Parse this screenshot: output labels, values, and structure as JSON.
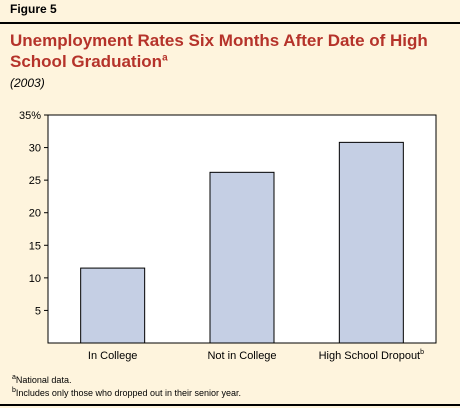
{
  "header": {
    "figure_label": "Figure 5",
    "title": "Unemployment Rates Six Months After Date of High School Graduation",
    "title_note_marker": "a",
    "subtitle": "(2003)"
  },
  "colors": {
    "panel_background": "#fef4dd",
    "title": "#b5332a",
    "bar_fill": "#c5cfe4",
    "bar_stroke": "#000000"
  },
  "chart_data": {
    "type": "bar",
    "categories": [
      "In College",
      "Not in College",
      "High School Dropout"
    ],
    "category_note_markers": [
      "",
      "",
      "b"
    ],
    "values": [
      11.5,
      26.2,
      30.8
    ],
    "yticks": [
      "5",
      "10",
      "15",
      "20",
      "25",
      "30",
      "35%"
    ],
    "ylim": [
      0,
      35
    ],
    "grid": false,
    "title": "Unemployment Rates Six Months After Date of High School Graduation",
    "xlabel": "",
    "ylabel": ""
  },
  "footnotes": [
    {
      "marker": "a",
      "text": "National data."
    },
    {
      "marker": "b",
      "text": "Includes only those who dropped out in their senior year."
    }
  ]
}
